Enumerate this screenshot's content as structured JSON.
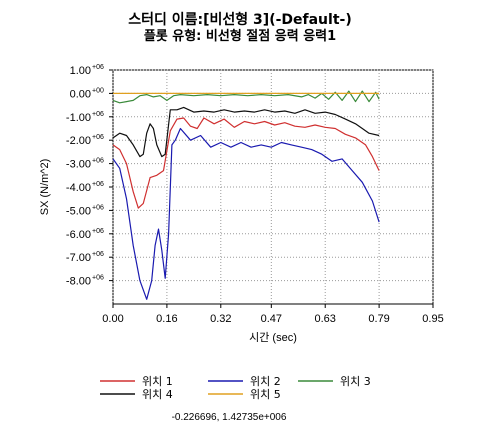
{
  "title": "스터디 이름:[비선형 3](-Default-)",
  "subtitle": "플롯 유형: 비선형 절점 응력 응력1",
  "coordinate_readout": "-0.226696, 1.42735e+006",
  "chart_data": {
    "type": "line",
    "xlabel": "시간 (sec)",
    "ylabel": "SX (N/m^2)",
    "xlim": [
      0,
      0.95
    ],
    "ylim": [
      -9000000,
      1000000
    ],
    "grid": true,
    "legend_placement": "bottom",
    "x_ticks": [
      {
        "value": 0.0,
        "label": "0.00"
      },
      {
        "value": 0.16,
        "label": "0.16"
      },
      {
        "value": 0.32,
        "label": "0.32"
      },
      {
        "value": 0.47,
        "label": "0.47"
      },
      {
        "value": 0.63,
        "label": "0.63"
      },
      {
        "value": 0.79,
        "label": "0.79"
      },
      {
        "value": 0.95,
        "label": "0.95"
      }
    ],
    "y_ticks": [
      {
        "value": 1000000,
        "mantissa": "1.00",
        "exp": "+06"
      },
      {
        "value": 0,
        "mantissa": "0.00",
        "exp": "+00"
      },
      {
        "value": -1000000,
        "mantissa": "-1.00",
        "exp": "+06"
      },
      {
        "value": -2000000,
        "mantissa": "-2.00",
        "exp": "+06"
      },
      {
        "value": -3000000,
        "mantissa": "-3.00",
        "exp": "+06"
      },
      {
        "value": -4000000,
        "mantissa": "-4.00",
        "exp": "+06"
      },
      {
        "value": -5000000,
        "mantissa": "-5.00",
        "exp": "+06"
      },
      {
        "value": -6000000,
        "mantissa": "-6.00",
        "exp": "+06"
      },
      {
        "value": -7000000,
        "mantissa": "-7.00",
        "exp": "+06"
      },
      {
        "value": -8000000,
        "mantissa": "-8.00",
        "exp": "+06"
      }
    ],
    "series": [
      {
        "name": "위치 1",
        "color": "#d03030",
        "points": [
          [
            0,
            -2200000
          ],
          [
            0.02,
            -2400000
          ],
          [
            0.04,
            -3000000
          ],
          [
            0.06,
            -4200000
          ],
          [
            0.075,
            -4900000
          ],
          [
            0.09,
            -4700000
          ],
          [
            0.11,
            -3600000
          ],
          [
            0.13,
            -3500000
          ],
          [
            0.15,
            -3300000
          ],
          [
            0.17,
            -1600000
          ],
          [
            0.19,
            -1100000
          ],
          [
            0.21,
            -1050000
          ],
          [
            0.23,
            -1400000
          ],
          [
            0.25,
            -1500000
          ],
          [
            0.27,
            -1050000
          ],
          [
            0.3,
            -1300000
          ],
          [
            0.33,
            -1100000
          ],
          [
            0.36,
            -1450000
          ],
          [
            0.39,
            -1200000
          ],
          [
            0.42,
            -1300000
          ],
          [
            0.45,
            -1200000
          ],
          [
            0.48,
            -1350000
          ],
          [
            0.51,
            -1250000
          ],
          [
            0.54,
            -1400000
          ],
          [
            0.57,
            -1450000
          ],
          [
            0.6,
            -1350000
          ],
          [
            0.63,
            -1450000
          ],
          [
            0.66,
            -1500000
          ],
          [
            0.69,
            -1750000
          ],
          [
            0.72,
            -1900000
          ],
          [
            0.75,
            -2200000
          ],
          [
            0.77,
            -2700000
          ],
          [
            0.79,
            -3300000
          ]
        ]
      },
      {
        "name": "위치 2",
        "color": "#1a1ab0",
        "points": [
          [
            0,
            -2800000
          ],
          [
            0.02,
            -3200000
          ],
          [
            0.04,
            -4500000
          ],
          [
            0.06,
            -6500000
          ],
          [
            0.08,
            -8000000
          ],
          [
            0.1,
            -8800000
          ],
          [
            0.115,
            -8000000
          ],
          [
            0.125,
            -6500000
          ],
          [
            0.135,
            -5800000
          ],
          [
            0.145,
            -6700000
          ],
          [
            0.155,
            -7900000
          ],
          [
            0.165,
            -6000000
          ],
          [
            0.175,
            -2200000
          ],
          [
            0.185,
            -2000000
          ],
          [
            0.2,
            -1500000
          ],
          [
            0.23,
            -2000000
          ],
          [
            0.26,
            -1800000
          ],
          [
            0.29,
            -2300000
          ],
          [
            0.32,
            -2100000
          ],
          [
            0.35,
            -2300000
          ],
          [
            0.38,
            -2100000
          ],
          [
            0.41,
            -2300000
          ],
          [
            0.44,
            -2200000
          ],
          [
            0.47,
            -2300000
          ],
          [
            0.5,
            -2100000
          ],
          [
            0.53,
            -2200000
          ],
          [
            0.56,
            -2300000
          ],
          [
            0.59,
            -2400000
          ],
          [
            0.62,
            -2600000
          ],
          [
            0.65,
            -2900000
          ],
          [
            0.68,
            -2800000
          ],
          [
            0.71,
            -3300000
          ],
          [
            0.74,
            -3800000
          ],
          [
            0.77,
            -4600000
          ],
          [
            0.79,
            -5500000
          ]
        ]
      },
      {
        "name": "위치 3",
        "color": "#3a8a3a",
        "points": [
          [
            0,
            -300000
          ],
          [
            0.02,
            -400000
          ],
          [
            0.04,
            -350000
          ],
          [
            0.06,
            -300000
          ],
          [
            0.08,
            -100000
          ],
          [
            0.1,
            -50000
          ],
          [
            0.12,
            -150000
          ],
          [
            0.14,
            -100000
          ],
          [
            0.16,
            -300000
          ],
          [
            0.18,
            -100000
          ],
          [
            0.2,
            -50000
          ],
          [
            0.24,
            -100000
          ],
          [
            0.28,
            -50000
          ],
          [
            0.32,
            -100000
          ],
          [
            0.36,
            -50000
          ],
          [
            0.4,
            -100000
          ],
          [
            0.44,
            -50000
          ],
          [
            0.48,
            -100000
          ],
          [
            0.52,
            -50000
          ],
          [
            0.56,
            -150000
          ],
          [
            0.58,
            -50000
          ],
          [
            0.6,
            -200000
          ],
          [
            0.62,
            0
          ],
          [
            0.64,
            -250000
          ],
          [
            0.66,
            50000
          ],
          [
            0.68,
            -300000
          ],
          [
            0.7,
            100000
          ],
          [
            0.72,
            -350000
          ],
          [
            0.74,
            100000
          ],
          [
            0.76,
            -350000
          ],
          [
            0.78,
            50000
          ],
          [
            0.79,
            -250000
          ]
        ]
      },
      {
        "name": "위치 4",
        "color": "#101010",
        "points": [
          [
            0,
            -1900000
          ],
          [
            0.02,
            -1700000
          ],
          [
            0.04,
            -1800000
          ],
          [
            0.06,
            -2200000
          ],
          [
            0.08,
            -2700000
          ],
          [
            0.09,
            -2600000
          ],
          [
            0.1,
            -1700000
          ],
          [
            0.11,
            -1300000
          ],
          [
            0.12,
            -1500000
          ],
          [
            0.13,
            -2200000
          ],
          [
            0.145,
            -2700000
          ],
          [
            0.155,
            -2600000
          ],
          [
            0.17,
            -700000
          ],
          [
            0.19,
            -700000
          ],
          [
            0.21,
            -600000
          ],
          [
            0.24,
            -800000
          ],
          [
            0.27,
            -750000
          ],
          [
            0.3,
            -800000
          ],
          [
            0.33,
            -700000
          ],
          [
            0.36,
            -800000
          ],
          [
            0.39,
            -750000
          ],
          [
            0.42,
            -800000
          ],
          [
            0.45,
            -700000
          ],
          [
            0.48,
            -800000
          ],
          [
            0.51,
            -750000
          ],
          [
            0.54,
            -850000
          ],
          [
            0.57,
            -700000
          ],
          [
            0.6,
            -850000
          ],
          [
            0.63,
            -800000
          ],
          [
            0.66,
            -900000
          ],
          [
            0.69,
            -1100000
          ],
          [
            0.72,
            -1300000
          ],
          [
            0.74,
            -1500000
          ],
          [
            0.76,
            -1700000
          ],
          [
            0.79,
            -1800000
          ]
        ]
      },
      {
        "name": "위치 5",
        "color": "#e0a020",
        "points": [
          [
            0,
            0
          ],
          [
            0.1,
            0
          ],
          [
            0.2,
            0
          ],
          [
            0.3,
            0
          ],
          [
            0.4,
            0
          ],
          [
            0.5,
            0
          ],
          [
            0.6,
            0
          ],
          [
            0.7,
            0
          ],
          [
            0.79,
            0
          ]
        ]
      }
    ]
  }
}
